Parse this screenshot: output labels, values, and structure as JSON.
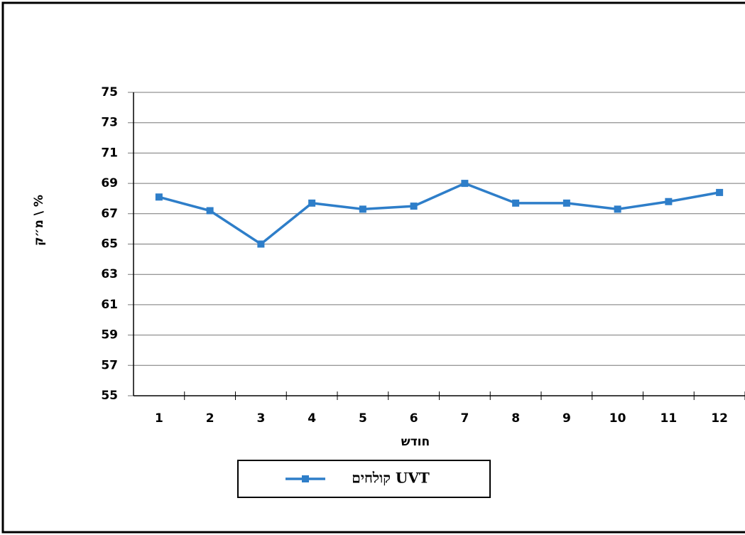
{
  "chart_data": {
    "type": "line",
    "y_label": "מ״ק \\ %",
    "x_label": "חודש",
    "categories": [
      "1",
      "2",
      "3",
      "4",
      "5",
      "6",
      "7",
      "8",
      "9",
      "10",
      "11",
      "12"
    ],
    "series": [
      {
        "name": "קולחים UVT",
        "color": "#2e7ec9",
        "values": [
          68.1,
          67.2,
          65.0,
          67.7,
          67.3,
          67.5,
          69.0,
          67.7,
          67.7,
          67.3,
          67.8,
          68.4
        ]
      }
    ],
    "ylim": [
      55,
      75
    ],
    "yticks": [
      55,
      57,
      59,
      61,
      63,
      65,
      67,
      69,
      71,
      73,
      75
    ],
    "grid": true
  }
}
